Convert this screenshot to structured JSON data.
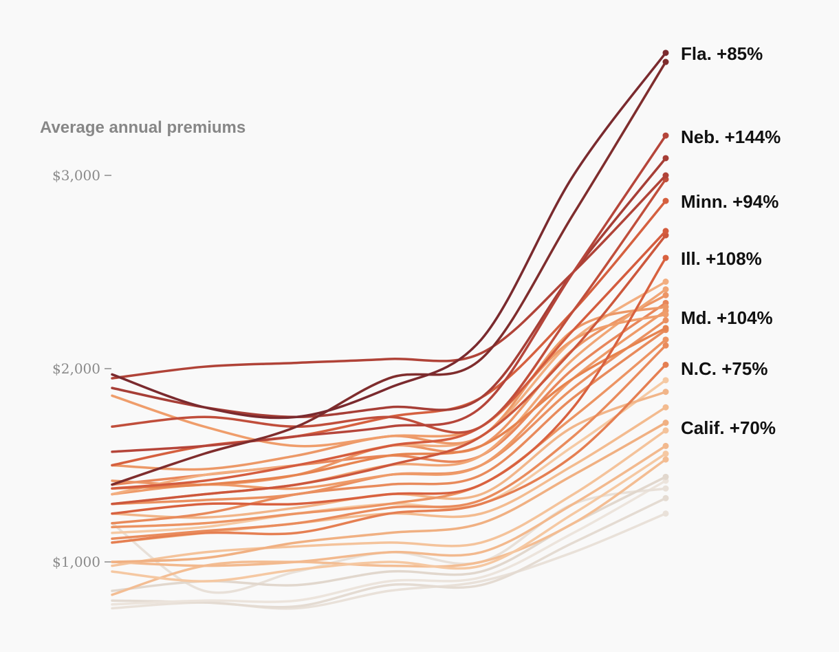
{
  "chart_data": {
    "type": "line",
    "title": "Average annual premiums",
    "xlabel": "",
    "ylabel": "",
    "ylim": [
      750,
      3700
    ],
    "yticks": [
      {
        "value": 1000,
        "label": "$1,000"
      },
      {
        "value": 2000,
        "label": "$2,000"
      },
      {
        "value": 3000,
        "label": "$3,000"
      }
    ],
    "grid": false,
    "labels": [
      "Fla. +85%",
      "Neb. +144%",
      "Minn. +94%",
      "Ill. +108%",
      "Md. +104%",
      "N.C. +75%",
      "Calif. +70%"
    ],
    "series": [
      {
        "values": [
          760,
          790,
          760,
          850,
          900,
          1050,
          1250
        ],
        "color": "#e9e1d9"
      },
      {
        "values": [
          800,
          790,
          770,
          880,
          880,
          1100,
          1330
        ],
        "color": "#e4dbd2"
      },
      {
        "values": [
          780,
          800,
          800,
          900,
          920,
          1150,
          1420
        ],
        "color": "#ece4dc"
      },
      {
        "values": [
          1200,
          850,
          950,
          1050,
          1000,
          1300,
          1380
        ],
        "color": "#e8e0d8"
      },
      {
        "values": [
          850,
          900,
          880,
          950,
          950,
          1200,
          1440
        ],
        "color": "#e1d7cd"
      },
      {
        "values": [
          830,
          980,
          1000,
          980,
          1000,
          1200,
          1530
        ],
        "color": "#f3bd93"
      },
      {
        "values": [
          950,
          900,
          960,
          1000,
          980,
          1250,
          1560
        ],
        "color": "#f5c8a2"
      },
      {
        "values": [
          1000,
          980,
          1000,
          1050,
          1050,
          1300,
          1600
        ],
        "color": "#f2b98e"
      },
      {
        "values": [
          980,
          1050,
          1080,
          1100,
          1100,
          1350,
          1680
        ],
        "color": "#f4c39b"
      },
      {
        "values": [
          1000,
          1020,
          1100,
          1150,
          1200,
          1450,
          1720
        ],
        "color": "#f0b082"
      },
      {
        "values": [
          1100,
          1150,
          1200,
          1250,
          1250,
          1500,
          1800
        ],
        "color": "#f3bb8f"
      },
      {
        "values": [
          1150,
          1180,
          1250,
          1300,
          1300,
          1600,
          1940
        ],
        "color": "#f5c9a3"
      },
      {
        "values": [
          1250,
          1230,
          1280,
          1350,
          1350,
          1700,
          1880
        ],
        "color": "#f1b589"
      },
      {
        "values": [
          1100,
          1150,
          1150,
          1250,
          1300,
          1550,
          2020
        ],
        "color": "#e57f52"
      },
      {
        "values": [
          1120,
          1160,
          1200,
          1280,
          1320,
          1650,
          2120
        ],
        "color": "#e98b5c"
      },
      {
        "values": [
          1180,
          1200,
          1250,
          1300,
          1400,
          1750,
          2150
        ],
        "color": "#ec9463"
      },
      {
        "values": [
          1200,
          1250,
          1350,
          1400,
          1450,
          1850,
          2200
        ],
        "color": "#e88a5b"
      },
      {
        "values": [
          1300,
          1320,
          1350,
          1450,
          1500,
          1900,
          2250
        ],
        "color": "#ea9060"
      },
      {
        "values": [
          1350,
          1400,
          1380,
          1450,
          1500,
          1950,
          2300
        ],
        "color": "#ee9a68"
      },
      {
        "values": [
          1400,
          1450,
          1500,
          1550,
          1550,
          2000,
          2340
        ],
        "color": "#e8865a"
      },
      {
        "values": [
          1420,
          1400,
          1450,
          1600,
          1600,
          2100,
          2380
        ],
        "color": "#ec9565"
      },
      {
        "values": [
          1300,
          1350,
          1400,
          1500,
          1550,
          2050,
          2410
        ],
        "color": "#f0a575"
      },
      {
        "values": [
          1350,
          1450,
          1500,
          1600,
          1650,
          2150,
          2450
        ],
        "color": "#f2ae80"
      },
      {
        "values": [
          1500,
          1480,
          1550,
          1650,
          1650,
          2200,
          2320
        ],
        "color": "#ec9867"
      },
      {
        "values": [
          1860,
          1700,
          1600,
          1650,
          1700,
          2150,
          2280
        ],
        "color": "#ef9d6b"
      },
      {
        "values": [
          1380,
          1400,
          1450,
          1550,
          1600,
          1950,
          2210
        ],
        "color": "#e6834f"
      },
      {
        "values": [
          1250,
          1300,
          1300,
          1350,
          1400,
          1800,
          2573
        ],
        "color": "#d8613f"
      },
      {
        "values": [
          1300,
          1350,
          1400,
          1500,
          1650,
          2100,
          2690
        ],
        "color": "#cc573c"
      },
      {
        "values": [
          1380,
          1420,
          1500,
          1600,
          1700,
          2200,
          2712
        ],
        "color": "#d45c3e"
      },
      {
        "values": [
          1500,
          1600,
          1650,
          1750,
          1850,
          2300,
          2868
        ],
        "color": "#d5603f"
      },
      {
        "values": [
          1700,
          1750,
          1700,
          1750,
          1700,
          2300,
          2980
        ],
        "color": "#c04e3b"
      },
      {
        "values": [
          1950,
          2010,
          2030,
          2050,
          2080,
          2500,
          3000
        ],
        "color": "#b04338"
      },
      {
        "values": [
          1900,
          1800,
          1750,
          1800,
          1850,
          2500,
          3089
        ],
        "color": "#a63e36"
      },
      {
        "values": [
          1570,
          1600,
          1650,
          1700,
          1800,
          2500,
          3206
        ],
        "color": "#b5453a"
      },
      {
        "values": [
          1400,
          1560,
          1700,
          1950,
          2050,
          2800,
          3587
        ],
        "color": "#7f2d2d"
      },
      {
        "values": [
          1970,
          1800,
          1750,
          1900,
          2150,
          3000,
          3634
        ],
        "color": "#7a2a2e"
      }
    ]
  }
}
